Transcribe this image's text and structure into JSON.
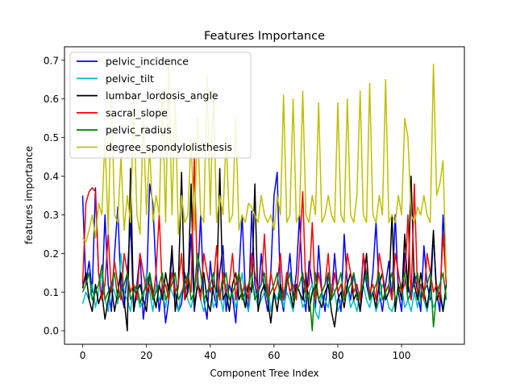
{
  "chart_data": {
    "type": "line",
    "title": "Features Importance",
    "xlabel": "Component Tree Index",
    "ylabel": "features importance",
    "xlim": [
      -5.7,
      119.7
    ],
    "ylim": [
      -0.035,
      0.735
    ],
    "xticks": [
      0,
      20,
      40,
      60,
      80,
      100
    ],
    "yticks": [
      0.0,
      0.1,
      0.2,
      0.3,
      0.4,
      0.5,
      0.6,
      0.7
    ],
    "grid": false,
    "legend": "top-left",
    "x": [
      0,
      1,
      2,
      3,
      4,
      5,
      6,
      7,
      8,
      9,
      10,
      11,
      12,
      13,
      14,
      15,
      16,
      17,
      18,
      19,
      20,
      21,
      22,
      23,
      24,
      25,
      26,
      27,
      28,
      29,
      30,
      31,
      32,
      33,
      34,
      35,
      36,
      37,
      38,
      39,
      40,
      41,
      42,
      43,
      44,
      45,
      46,
      47,
      48,
      49,
      50,
      51,
      52,
      53,
      54,
      55,
      56,
      57,
      58,
      59,
      60,
      61,
      62,
      63,
      64,
      65,
      66,
      67,
      68,
      69,
      70,
      71,
      72,
      73,
      74,
      75,
      76,
      77,
      78,
      79,
      80,
      81,
      82,
      83,
      84,
      85,
      86,
      87,
      88,
      89,
      90,
      91,
      92,
      93,
      94,
      95,
      96,
      97,
      98,
      99,
      100,
      101,
      102,
      103,
      104,
      105,
      106,
      107,
      108,
      109,
      110,
      111,
      112,
      113,
      114
    ],
    "series": [
      {
        "name": "pelvic_incidence",
        "color": "#0000ff",
        "values": [
          0.35,
          0.12,
          0.18,
          0.1,
          0.37,
          0.15,
          0.08,
          0.3,
          0.12,
          0.05,
          0.2,
          0.32,
          0.1,
          0.06,
          0.15,
          0.28,
          0.05,
          0.12,
          0.2,
          0.03,
          0.1,
          0.38,
          0.33,
          0.15,
          0.05,
          0.12,
          0.02,
          0.08,
          0.2,
          0.1,
          0.05,
          0.07,
          0.15,
          0.1,
          0.25,
          0.05,
          0.12,
          0.3,
          0.08,
          0.03,
          0.18,
          0.1,
          0.06,
          0.15,
          0.22,
          0.05,
          0.12,
          0.09,
          0.02,
          0.15,
          0.3,
          0.1,
          0.05,
          0.31,
          0.12,
          0.08,
          0.2,
          0.1,
          0.05,
          0.15,
          0.35,
          0.41,
          0.1,
          0.05,
          0.12,
          0.2,
          0.08,
          0.15,
          0.3,
          0.1,
          0.05,
          0.18,
          0.12,
          0.06,
          0.22,
          0.1,
          0.05,
          0.15,
          0.08,
          0.2,
          0.1,
          0.05,
          0.25,
          0.12,
          0.08,
          0.15,
          0.1,
          0.05,
          0.2,
          0.12,
          0.08,
          0.15,
          0.28,
          0.1,
          0.05,
          0.12,
          0.18,
          0.08,
          0.3,
          0.1,
          0.05,
          0.2,
          0.12,
          0.08,
          0.15,
          0.1,
          0.05,
          0.22,
          0.12,
          0.08,
          0.25,
          0.1,
          0.05,
          0.3,
          0.15
        ]
      },
      {
        "name": "pelvic_tilt",
        "color": "#00bfbf",
        "values": [
          0.07,
          0.1,
          0.08,
          0.12,
          0.06,
          0.1,
          0.15,
          0.08,
          0.05,
          0.12,
          0.1,
          0.07,
          0.2,
          0.1,
          0.08,
          0.05,
          0.12,
          0.1,
          0.06,
          0.08,
          0.15,
          0.1,
          0.05,
          0.12,
          0.08,
          0.1,
          0.06,
          0.12,
          0.1,
          0.08,
          0.05,
          0.1,
          0.12,
          0.08,
          0.06,
          0.1,
          0.15,
          0.08,
          0.05,
          0.1,
          0.12,
          0.06,
          0.08,
          0.1,
          0.05,
          0.12,
          0.08,
          0.1,
          0.06,
          0.1,
          0.15,
          0.08,
          0.05,
          0.12,
          0.1,
          0.06,
          0.08,
          0.1,
          0.12,
          0.05,
          0.1,
          0.08,
          0.12,
          0.06,
          0.1,
          0.08,
          0.05,
          0.12,
          0.1,
          0.06,
          0.08,
          0.1,
          0.12,
          0.05,
          0.03,
          0.1,
          0.08,
          0.06,
          0.12,
          0.1,
          0.05,
          0.08,
          0.1,
          0.12,
          0.06,
          0.08,
          0.05,
          0.1,
          0.12,
          0.08,
          0.06,
          0.1,
          0.05,
          0.08,
          0.12,
          0.1,
          0.06,
          0.05,
          0.08,
          0.1,
          0.12,
          0.06,
          0.08,
          0.05,
          0.1,
          0.06,
          0.12,
          0.08,
          0.05,
          0.1,
          0.06,
          0.08,
          0.12,
          0.05,
          0.1
        ]
      },
      {
        "name": "lumbar_lordosis_angle",
        "color": "#000000",
        "values": [
          0.11,
          0.15,
          0.08,
          0.05,
          0.12,
          0.07,
          0.1,
          0.03,
          0.08,
          0.12,
          0.05,
          0.1,
          0.15,
          0.08,
          0.0,
          0.42,
          0.05,
          0.1,
          0.12,
          0.08,
          0.05,
          0.15,
          0.1,
          0.06,
          0.12,
          0.08,
          0.15,
          0.1,
          0.22,
          0.05,
          0.12,
          0.41,
          0.08,
          0.1,
          0.38,
          0.06,
          0.12,
          0.1,
          0.15,
          0.08,
          0.05,
          0.12,
          0.1,
          0.42,
          0.08,
          0.1,
          0.05,
          0.12,
          0.15,
          0.08,
          0.1,
          0.06,
          0.12,
          0.1,
          0.38,
          0.05,
          0.1,
          0.12,
          0.08,
          0.02,
          0.1,
          0.05,
          0.12,
          0.08,
          0.15,
          0.1,
          0.06,
          0.12,
          0.1,
          0.08,
          0.15,
          0.05,
          0.1,
          0.12,
          0.08,
          0.06,
          0.1,
          0.12,
          0.05,
          0.01,
          0.08,
          0.1,
          0.06,
          0.12,
          0.15,
          0.08,
          0.1,
          0.05,
          0.12,
          0.2,
          0.08,
          0.1,
          0.06,
          0.12,
          0.15,
          0.08,
          0.1,
          0.3,
          0.05,
          0.12,
          0.08,
          0.25,
          0.1,
          0.4,
          0.12,
          0.08,
          0.15,
          0.1,
          0.06,
          0.12,
          0.26,
          0.08,
          0.1,
          0.05,
          0.12
        ]
      },
      {
        "name": "sacral_slope",
        "color": "#ff0000",
        "values": [
          0.12,
          0.33,
          0.36,
          0.37,
          0.36,
          0.15,
          0.08,
          0.12,
          0.25,
          0.1,
          0.18,
          0.12,
          0.08,
          0.2,
          0.15,
          0.1,
          0.12,
          0.08,
          0.2,
          0.15,
          0.1,
          0.12,
          0.08,
          0.15,
          0.3,
          0.1,
          0.12,
          0.08,
          0.15,
          0.1,
          0.12,
          0.2,
          0.08,
          0.15,
          0.1,
          0.45,
          0.12,
          0.08,
          0.2,
          0.15,
          0.1,
          0.12,
          0.22,
          0.08,
          0.15,
          0.1,
          0.12,
          0.2,
          0.08,
          0.15,
          0.1,
          0.12,
          0.08,
          0.2,
          0.15,
          0.1,
          0.12,
          0.25,
          0.08,
          0.15,
          0.1,
          0.12,
          0.2,
          0.08,
          0.15,
          0.1,
          0.12,
          0.08,
          0.2,
          0.36,
          0.1,
          0.12,
          0.28,
          0.08,
          0.15,
          0.1,
          0.12,
          0.2,
          0.08,
          0.15,
          0.1,
          0.12,
          0.08,
          0.2,
          0.15,
          0.1,
          0.12,
          0.08,
          0.2,
          0.15,
          0.1,
          0.12,
          0.08,
          0.2,
          0.15,
          0.1,
          0.12,
          0.08,
          0.2,
          0.15,
          0.1,
          0.12,
          0.3,
          0.08,
          0.38,
          0.1,
          0.12,
          0.08,
          0.2,
          0.15,
          0.1,
          0.12,
          0.08,
          0.25,
          0.12
        ]
      },
      {
        "name": "pelvic_radius",
        "color": "#008000",
        "values": [
          0.1,
          0.12,
          0.15,
          0.08,
          0.1,
          0.12,
          0.17,
          0.08,
          0.1,
          0.12,
          0.15,
          0.08,
          0.1,
          0.12,
          0.15,
          0.08,
          0.1,
          0.12,
          0.07,
          0.1,
          0.12,
          0.15,
          0.08,
          0.1,
          0.12,
          0.15,
          0.08,
          0.1,
          0.12,
          0.15,
          0.08,
          0.1,
          0.12,
          0.15,
          0.08,
          0.1,
          0.2,
          0.15,
          0.08,
          0.1,
          0.12,
          0.15,
          0.08,
          0.1,
          0.12,
          0.15,
          0.08,
          0.1,
          0.12,
          0.15,
          0.08,
          0.1,
          0.12,
          0.15,
          0.08,
          0.1,
          0.12,
          0.15,
          0.08,
          0.1,
          0.12,
          0.15,
          0.08,
          0.1,
          0.12,
          0.15,
          0.08,
          0.1,
          0.12,
          0.15,
          0.08,
          0.1,
          0.0,
          0.15,
          0.08,
          0.1,
          0.12,
          0.15,
          0.08,
          0.1,
          0.12,
          0.15,
          0.08,
          0.1,
          0.12,
          0.15,
          0.08,
          0.1,
          0.12,
          0.15,
          0.08,
          0.1,
          0.12,
          0.15,
          0.08,
          0.1,
          0.12,
          0.15,
          0.08,
          0.1,
          0.12,
          0.15,
          0.08,
          0.1,
          0.12,
          0.15,
          0.08,
          0.1,
          0.12,
          0.15,
          0.01,
          0.1,
          0.12,
          0.15,
          0.08
        ]
      },
      {
        "name": "degree_spondylolisthesis",
        "color": "#bfbf00",
        "values": [
          0.24,
          0.23,
          0.26,
          0.3,
          0.24,
          0.33,
          0.3,
          0.5,
          0.25,
          0.62,
          0.3,
          0.28,
          0.45,
          0.26,
          0.35,
          0.28,
          0.6,
          0.3,
          0.25,
          0.55,
          0.3,
          0.48,
          0.28,
          0.35,
          0.3,
          0.62,
          0.28,
          0.69,
          0.3,
          0.6,
          0.25,
          0.35,
          0.28,
          0.3,
          0.5,
          0.26,
          0.55,
          0.3,
          0.28,
          0.66,
          0.3,
          0.63,
          0.28,
          0.35,
          0.3,
          0.5,
          0.28,
          0.3,
          0.55,
          0.26,
          0.3,
          0.28,
          0.33,
          0.32,
          0.3,
          0.28,
          0.35,
          0.3,
          0.28,
          0.3,
          0.26,
          0.35,
          0.3,
          0.61,
          0.28,
          0.3,
          0.6,
          0.28,
          0.3,
          0.62,
          0.3,
          0.28,
          0.35,
          0.3,
          0.59,
          0.28,
          0.3,
          0.35,
          0.3,
          0.28,
          0.59,
          0.3,
          0.28,
          0.6,
          0.3,
          0.28,
          0.35,
          0.62,
          0.3,
          0.28,
          0.64,
          0.3,
          0.28,
          0.35,
          0.3,
          0.65,
          0.28,
          0.3,
          0.28,
          0.35,
          0.3,
          0.55,
          0.5,
          0.3,
          0.28,
          0.32,
          0.3,
          0.35,
          0.3,
          0.28,
          0.69,
          0.35,
          0.38,
          0.44,
          0.14
        ]
      }
    ]
  }
}
